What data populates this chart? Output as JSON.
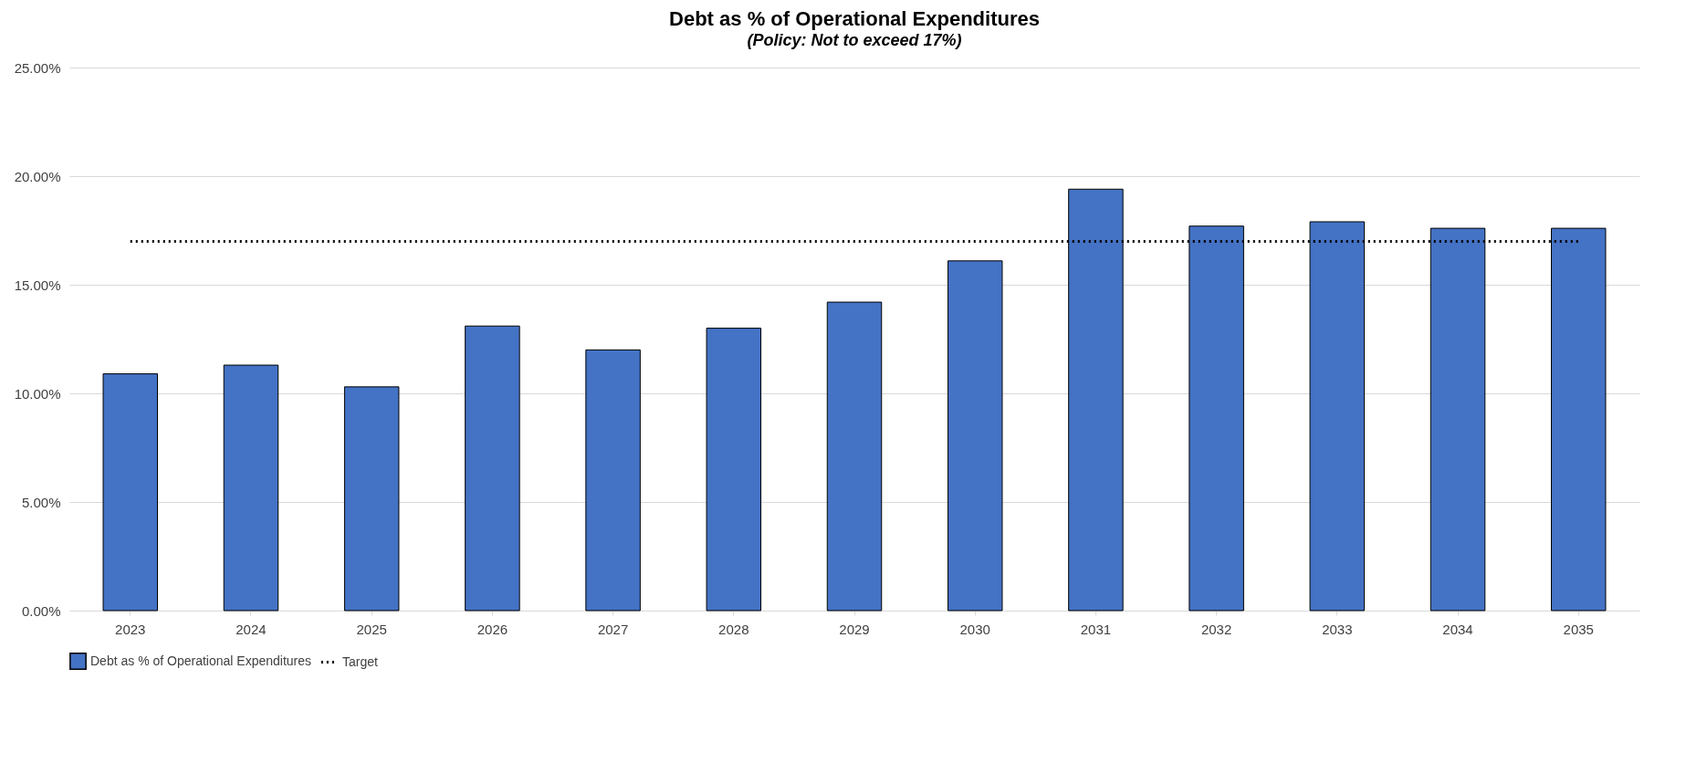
{
  "chart_data": {
    "type": "bar",
    "title": "Debt as % of Operational Expenditures",
    "subtitle": "(Policy: Not to exceed 17%)",
    "categories": [
      "2023",
      "2024",
      "2025",
      "2026",
      "2027",
      "2028",
      "2029",
      "2030",
      "2031",
      "2032",
      "2033",
      "2034",
      "2035"
    ],
    "series": [
      {
        "name": "Debt as % of Operational Expenditures",
        "color": "#4472c4",
        "values": [
          10.9,
          11.3,
          10.3,
          13.1,
          12.0,
          13.0,
          14.2,
          16.1,
          19.4,
          17.7,
          17.9,
          17.6,
          17.6
        ]
      },
      {
        "name": "Target",
        "type": "line",
        "color": "#000000",
        "line_style": "dotted",
        "marker": "none",
        "values": [
          17,
          17,
          17,
          17,
          17,
          17,
          17,
          17,
          17,
          17,
          17,
          17,
          17
        ]
      }
    ],
    "ylim": [
      0,
      25
    ],
    "yticks": [
      {
        "value": 0,
        "label": "0.00%"
      },
      {
        "value": 5,
        "label": "5.00%"
      },
      {
        "value": 10,
        "label": "10.00%"
      },
      {
        "value": 15,
        "label": "15.00%"
      },
      {
        "value": 20,
        "label": "20.00%"
      },
      {
        "value": 25,
        "label": "25.00%"
      }
    ],
    "grid": "y",
    "legend": "bottom"
  }
}
